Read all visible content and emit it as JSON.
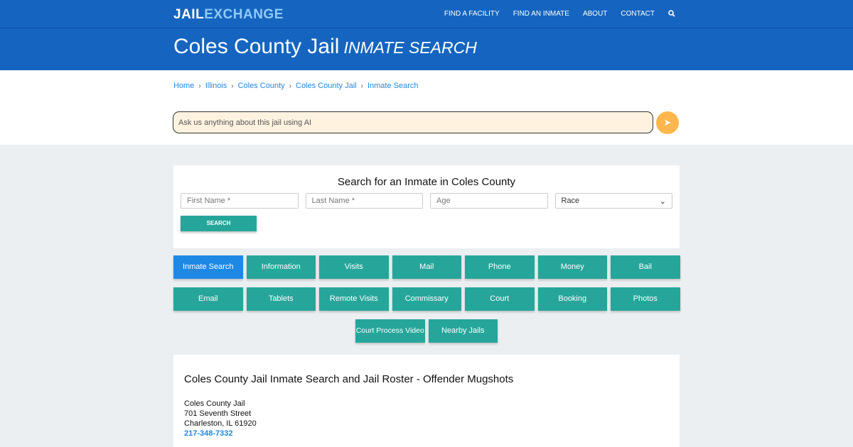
{
  "nav": {
    "logo_a": "JAIL",
    "logo_b": "EXCHANGE",
    "items": [
      "FIND A FACILITY",
      "FIND AN INMATE",
      "ABOUT",
      "CONTACT"
    ]
  },
  "title": {
    "main": "Coles County Jail",
    "sub": "INMATE SEARCH"
  },
  "breadcrumb": [
    "Home",
    "Illinois",
    "Coles County",
    "Coles County Jail",
    "Inmate Search"
  ],
  "ai": {
    "placeholder": "Ask us anything about this jail using AI"
  },
  "search": {
    "heading": "Search for an Inmate in Coles County",
    "first": "First Name *",
    "last": "Last Name *",
    "age": "Age",
    "race": "Race",
    "button": "SEARCH"
  },
  "buttons": [
    "Inmate Search",
    "Information",
    "Visits",
    "Mail",
    "Phone",
    "Money",
    "Bail",
    "Email",
    "Tablets",
    "Remote Visits",
    "Commissary",
    "Court",
    "Booking",
    "Photos",
    "Court Process Video",
    "Nearby Jails"
  ],
  "content": {
    "heading": "Coles County Jail Inmate Search and Jail Roster - Offender Mugshots",
    "name": "Coles County Jail",
    "street": "701 Seventh Street",
    "city": "Charleston, IL 61920",
    "phone": "217-348-7332"
  }
}
